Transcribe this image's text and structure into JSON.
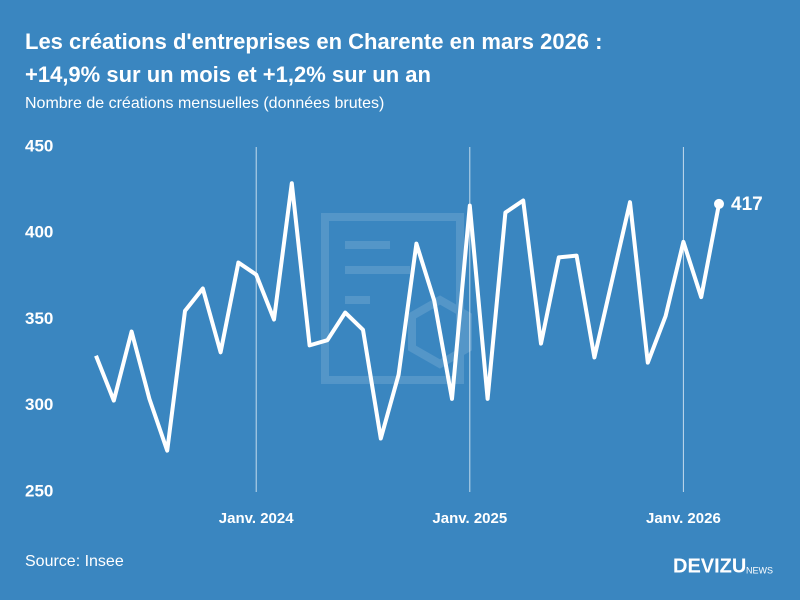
{
  "chart_data": {
    "type": "line",
    "title_lines": [
      "Les créations d'entreprises en Charente en mars 2026 :",
      "+14,9% sur un mois et +1,2% sur un an"
    ],
    "subtitle": "Nombre de créations mensuelles (données brutes)",
    "x": [
      "2023-04",
      "2023-05",
      "2023-06",
      "2023-07",
      "2023-08",
      "2023-09",
      "2023-10",
      "2023-11",
      "2023-12",
      "2024-01",
      "2024-02",
      "2024-03",
      "2024-04",
      "2024-05",
      "2024-06",
      "2024-07",
      "2024-08",
      "2024-09",
      "2024-10",
      "2024-11",
      "2024-12",
      "2025-01",
      "2025-02",
      "2025-03",
      "2025-04",
      "2025-05",
      "2025-06",
      "2025-07",
      "2025-08",
      "2025-09",
      "2025-10",
      "2025-11",
      "2025-12",
      "2026-01",
      "2026-02",
      "2026-03"
    ],
    "values": [
      329,
      303,
      343,
      304,
      274,
      355,
      368,
      331,
      383,
      376,
      350,
      429,
      335,
      338,
      354,
      344,
      281,
      318,
      394,
      361,
      304,
      416,
      304,
      412,
      419,
      336,
      386,
      387,
      328,
      373,
      418,
      325,
      352,
      395,
      363,
      417
    ],
    "color": "#ffffff",
    "ylim": [
      250,
      450
    ],
    "yticks": [
      250,
      300,
      350,
      400,
      450
    ],
    "xticks": [
      {
        "value": "2024-01",
        "label": "Janv. 2024"
      },
      {
        "value": "2025-01",
        "label": "Janv. 2025"
      },
      {
        "value": "2026-01",
        "label": "Janv. 2026"
      }
    ],
    "vertical_grid": true,
    "source": "Source: Insee",
    "brand": "DEVIZU",
    "brand_suffix": "NEWS"
  }
}
